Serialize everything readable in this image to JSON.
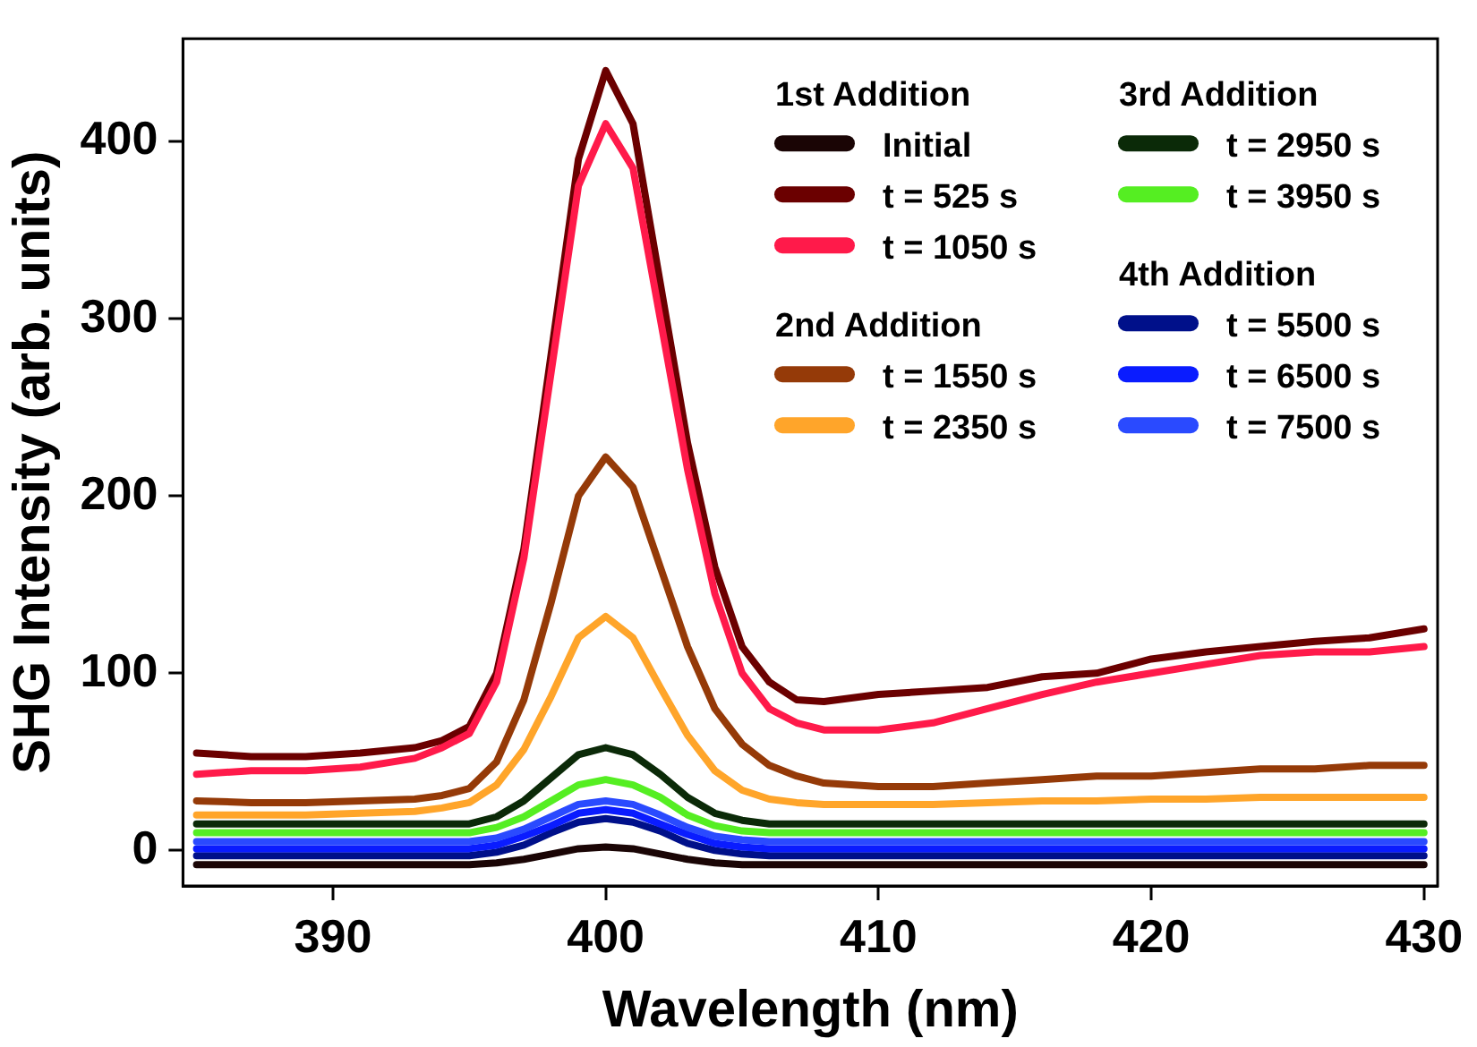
{
  "chart_data": {
    "type": "line",
    "xlabel": "Wavelength (nm)",
    "ylabel": "SHG Intensity (arb. units)",
    "x": [
      385,
      387,
      389,
      391,
      393,
      394,
      395,
      396,
      397,
      398,
      399,
      400,
      401,
      402,
      403,
      404,
      405,
      406,
      407,
      408,
      410,
      412,
      414,
      416,
      418,
      420,
      422,
      424,
      426,
      428,
      430
    ],
    "xlim": [
      384.5,
      430.5
    ],
    "xticks": [
      390,
      400,
      410,
      420,
      430
    ],
    "ylim": [
      -20,
      458
    ],
    "yticks": [
      0,
      100,
      200,
      300,
      400
    ],
    "legend": "top right",
    "marker": "none",
    "line_style": "solid",
    "annotations": [
      "1st Addition",
      "2nd Addition",
      "3rd Addition",
      "4th Addition"
    ],
    "series": [
      {
        "name": "Initial",
        "color": "#1a0505",
        "values": [
          -8,
          -8,
          -8,
          -8,
          -8,
          -8,
          -8,
          -7,
          -5,
          -2,
          1,
          2,
          1,
          -2,
          -5,
          -7,
          -8,
          -8,
          -8,
          -8,
          -8,
          -8,
          -8,
          -8,
          -8,
          -8,
          -8,
          -8,
          -8,
          -8,
          -8
        ]
      },
      {
        "name": "t = 525 s",
        "color": "#6b0000",
        "values": [
          55,
          53,
          53,
          55,
          58,
          62,
          70,
          100,
          170,
          280,
          390,
          440,
          410,
          320,
          230,
          160,
          115,
          95,
          85,
          84,
          88,
          90,
          92,
          98,
          100,
          108,
          112,
          115,
          118,
          120,
          125
        ]
      },
      {
        "name": "t = 1050 s",
        "color": "#ff1a4a",
        "values": [
          43,
          45,
          45,
          47,
          52,
          58,
          66,
          95,
          165,
          270,
          375,
          410,
          385,
          300,
          215,
          145,
          100,
          80,
          72,
          68,
          68,
          72,
          80,
          88,
          95,
          100,
          105,
          110,
          112,
          112,
          115
        ]
      },
      {
        "name": "t = 1550 s",
        "color": "#953a08",
        "values": [
          28,
          27,
          27,
          28,
          29,
          31,
          35,
          50,
          85,
          140,
          200,
          222,
          205,
          160,
          115,
          80,
          60,
          48,
          42,
          38,
          36,
          36,
          38,
          40,
          42,
          42,
          44,
          46,
          46,
          48,
          48
        ]
      },
      {
        "name": "t = 2350 s",
        "color": "#ffa52a",
        "values": [
          20,
          20,
          20,
          21,
          22,
          24,
          27,
          37,
          57,
          87,
          120,
          132,
          120,
          92,
          65,
          45,
          34,
          29,
          27,
          26,
          26,
          26,
          27,
          28,
          28,
          29,
          29,
          30,
          30,
          30,
          30
        ]
      },
      {
        "name": "t = 2950 s",
        "color": "#0b2a08",
        "values": [
          15,
          15,
          15,
          15,
          15,
          15,
          15,
          19,
          28,
          41,
          54,
          58,
          54,
          43,
          30,
          21,
          17,
          15,
          15,
          15,
          15,
          15,
          15,
          15,
          15,
          15,
          15,
          15,
          15,
          15,
          15
        ]
      },
      {
        "name": "t = 3950 s",
        "color": "#55ee22",
        "values": [
          10,
          10,
          10,
          10,
          10,
          10,
          10,
          13,
          19,
          28,
          37,
          40,
          37,
          30,
          20,
          14,
          11,
          10,
          10,
          10,
          10,
          10,
          10,
          10,
          10,
          10,
          10,
          10,
          10,
          10,
          10
        ]
      },
      {
        "name": "t = 5500 s",
        "color": "#00108a",
        "values": [
          -3,
          -3,
          -3,
          -3,
          -3,
          -3,
          -3,
          -1,
          3,
          10,
          16,
          18,
          16,
          11,
          4,
          0,
          -2,
          -3,
          -3,
          -3,
          -3,
          -3,
          -3,
          -3,
          -3,
          -3,
          -3,
          -3,
          -3,
          -3,
          -3
        ]
      },
      {
        "name": "t = 6500 s",
        "color": "#0a1cff",
        "values": [
          1,
          1,
          1,
          1,
          1,
          1,
          1,
          3,
          8,
          14,
          21,
          23,
          21,
          15,
          9,
          4,
          2,
          1,
          1,
          1,
          1,
          1,
          1,
          1,
          1,
          1,
          1,
          1,
          1,
          1,
          1
        ]
      },
      {
        "name": "t = 7500 s",
        "color": "#2a4aff",
        "values": [
          5,
          5,
          5,
          5,
          5,
          5,
          5,
          7,
          12,
          19,
          26,
          28,
          26,
          20,
          13,
          8,
          6,
          5,
          5,
          5,
          5,
          5,
          5,
          5,
          5,
          5,
          5,
          5,
          5,
          5,
          5
        ]
      }
    ]
  }
}
